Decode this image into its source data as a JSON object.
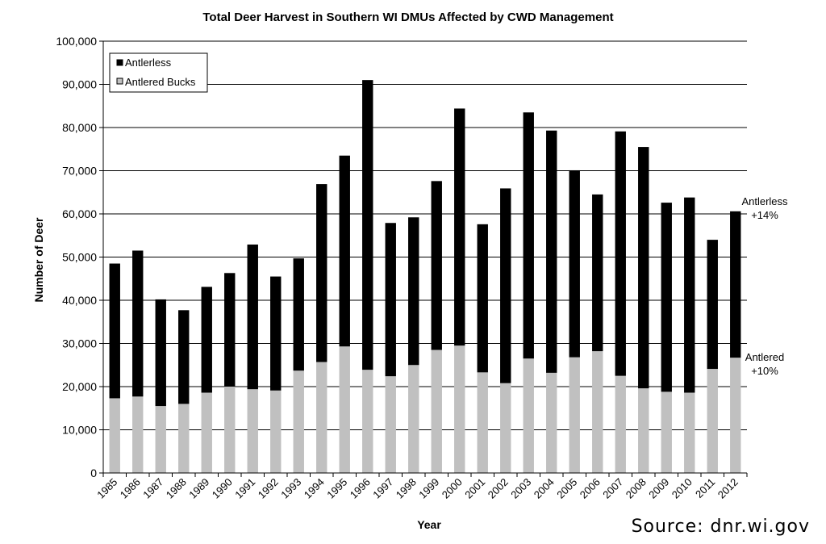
{
  "chart_data": {
    "type": "bar",
    "stacked": true,
    "title": "Total Deer Harvest in Southern WI DMUs Affected by CWD Management",
    "xlabel": "Year",
    "ylabel": "Number of Deer",
    "ylim": [
      0,
      100000
    ],
    "yticks": [
      0,
      10000,
      20000,
      30000,
      40000,
      50000,
      60000,
      70000,
      80000,
      90000,
      100000
    ],
    "ytick_labels": [
      "0",
      "10,000",
      "20,000",
      "30,000",
      "40,000",
      "50,000",
      "60,000",
      "70,000",
      "80,000",
      "90,000",
      "100,000"
    ],
    "grid": true,
    "legend_position": "top-left",
    "categories": [
      "1985",
      "1986",
      "1987",
      "1988",
      "1989",
      "1990",
      "1991",
      "1992",
      "1993",
      "1994",
      "1995",
      "1996",
      "1997",
      "1998",
      "1999",
      "2000",
      "2001",
      "2002",
      "2003",
      "2004",
      "2005",
      "2006",
      "2007",
      "2008",
      "2009",
      "2010",
      "2011",
      "2012"
    ],
    "series": [
      {
        "name": "Antlered Bucks",
        "color": "#c0c0c0",
        "values": [
          17300,
          17700,
          15500,
          16000,
          18600,
          20000,
          19400,
          19100,
          23700,
          25700,
          29300,
          23900,
          22400,
          25000,
          28500,
          29500,
          23300,
          20800,
          26500,
          23200,
          26800,
          28200,
          22500,
          19600,
          18800,
          18600,
          24100,
          26700
        ]
      },
      {
        "name": "Antlerless",
        "color": "#000000",
        "values": [
          31200,
          33800,
          24700,
          21700,
          24500,
          26300,
          33500,
          26400,
          26000,
          41200,
          44200,
          67100,
          35500,
          34200,
          39100,
          54900,
          34300,
          45100,
          57000,
          56100,
          43300,
          36300,
          56600,
          55900,
          43800,
          45200,
          29900,
          33900
        ]
      }
    ],
    "annotations": [
      {
        "text_line1": "Antlerless",
        "text_line2": "+14%"
      },
      {
        "text_line1": "Antlered",
        "text_line2": "+10%"
      }
    ]
  },
  "source_text": "Source: dnr.wi.gov"
}
